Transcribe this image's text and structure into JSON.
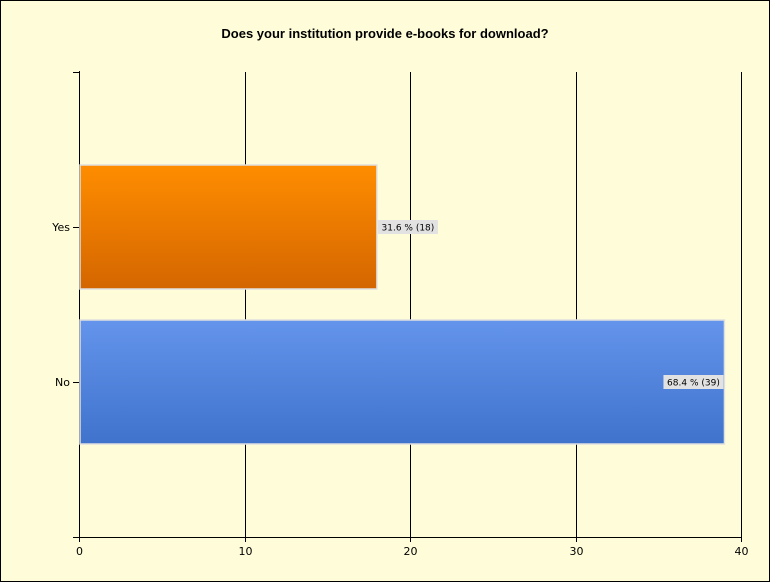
{
  "chart_data": {
    "type": "bar",
    "orientation": "horizontal",
    "title": "Does your institution provide e-books for download?",
    "xlabel": "",
    "ylabel": "",
    "categories": [
      "Yes",
      "No"
    ],
    "values": [
      18,
      39
    ],
    "data_labels": [
      "31.6 % (18)",
      "68.4 % (39)"
    ],
    "xlim": [
      0,
      40
    ],
    "x_ticks": [
      0,
      10,
      20,
      30,
      40
    ],
    "grid": true,
    "colors": {
      "Yes": {
        "top": "#ff8d00",
        "bottom": "#d46600"
      },
      "No": {
        "top": "#6494ec",
        "bottom": "#3f73cc"
      },
      "background": "#fffdd9",
      "label_box": "#e2e2e2"
    }
  }
}
